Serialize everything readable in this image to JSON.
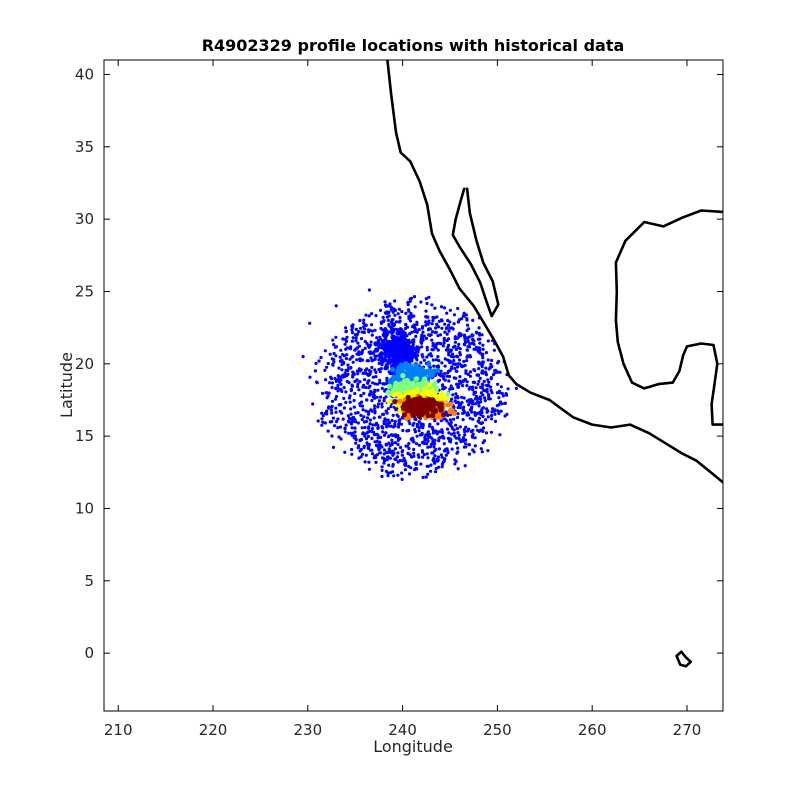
{
  "chart_data": {
    "type": "scatter",
    "title": "R4902329 profile locations with historical data",
    "xlabel": "Longitude",
    "ylabel": "Latitude",
    "xlim": [
      208.5,
      273.8
    ],
    "ylim": [
      -4,
      41
    ],
    "xticks": [
      210,
      220,
      230,
      240,
      250,
      260,
      270
    ],
    "yticks": [
      0,
      5,
      10,
      15,
      20,
      25,
      30,
      35,
      40
    ],
    "grid": false,
    "box": true,
    "colors": {
      "historical": "#0000ff",
      "coastline": "#000000",
      "profile_colormap": [
        "#00007f",
        "#0000ff",
        "#007fff",
        "#00ffff",
        "#7fff7f",
        "#ffff00",
        "#ff7f00",
        "#ff0000",
        "#7f0000"
      ]
    },
    "historical_cloud": {
      "center": [
        241.0,
        18.3
      ],
      "rx": 11.0,
      "ry": 6.6,
      "sample_points": [
        [
          229.5,
          20.5
        ],
        [
          230.2,
          22.8
        ],
        [
          231.0,
          18.7
        ],
        [
          232.5,
          17.0
        ],
        [
          233.0,
          24.0
        ],
        [
          234.0,
          21.0
        ],
        [
          235.5,
          19.5
        ],
        [
          236.0,
          15.0
        ],
        [
          236.5,
          25.1
        ],
        [
          237.0,
          13.5
        ],
        [
          238.0,
          16.5
        ],
        [
          238.5,
          23.0
        ],
        [
          239.5,
          12.3
        ],
        [
          240.0,
          14.0
        ],
        [
          241.0,
          21.5
        ],
        [
          242.5,
          24.5
        ],
        [
          243.0,
          13.0
        ],
        [
          244.0,
          22.0
        ],
        [
          245.5,
          15.0
        ],
        [
          246.0,
          20.0
        ],
        [
          247.0,
          17.5
        ],
        [
          248.0,
          19.2
        ],
        [
          249.0,
          14.0
        ],
        [
          250.0,
          18.0
        ],
        [
          251.0,
          16.5
        ],
        [
          252.0,
          18.3
        ],
        [
          233.5,
          14.8
        ],
        [
          231.5,
          16.2
        ],
        [
          246.5,
          23.5
        ],
        [
          248.5,
          21.0
        ]
      ]
    },
    "profile_series": [
      {
        "center": [
          239.5,
          21.0
        ],
        "spread": [
          1.6,
          1.2
        ],
        "value": 0.1
      },
      {
        "center": [
          241.0,
          19.0
        ],
        "spread": [
          2.0,
          0.9
        ],
        "value": 0.3
      },
      {
        "center": [
          241.2,
          18.1
        ],
        "spread": [
          2.3,
          0.7
        ],
        "value": 0.45
      },
      {
        "center": [
          242.0,
          17.5
        ],
        "spread": [
          2.5,
          0.7
        ],
        "value": 0.65
      },
      {
        "center": [
          242.5,
          16.9
        ],
        "spread": [
          2.3,
          0.6
        ],
        "value": 0.8
      },
      {
        "center": [
          242.0,
          17.0
        ],
        "spread": [
          1.7,
          0.5
        ],
        "value": 0.97
      }
    ],
    "coastlines": [
      {
        "name": "north-america-mainland",
        "points": [
          [
            238.4,
            41.0
          ],
          [
            238.8,
            38.6
          ],
          [
            239.3,
            36.0
          ],
          [
            239.8,
            34.6
          ],
          [
            240.8,
            34.0
          ],
          [
            241.8,
            32.6
          ],
          [
            242.6,
            31.0
          ],
          [
            243.1,
            29.0
          ],
          [
            243.9,
            27.8
          ],
          [
            245.0,
            26.5
          ],
          [
            246.0,
            25.2
          ],
          [
            247.5,
            24.0
          ],
          [
            248.5,
            22.9
          ],
          [
            249.6,
            21.7
          ],
          [
            250.6,
            20.5
          ],
          [
            251.2,
            19.2
          ],
          [
            252.0,
            18.6
          ],
          [
            253.5,
            18.0
          ],
          [
            255.5,
            17.5
          ],
          [
            258.0,
            16.3
          ],
          [
            260.0,
            15.8
          ],
          [
            262.0,
            15.6
          ],
          [
            264.0,
            15.8
          ],
          [
            266.0,
            15.2
          ],
          [
            268.0,
            14.4
          ],
          [
            269.5,
            13.8
          ],
          [
            271.0,
            13.3
          ],
          [
            272.5,
            12.5
          ],
          [
            273.8,
            11.8
          ]
        ]
      },
      {
        "name": "baja-california",
        "points": [
          [
            246.8,
            32.1
          ],
          [
            247.1,
            30.4
          ],
          [
            247.8,
            28.5
          ],
          [
            248.5,
            27.0
          ],
          [
            249.5,
            25.7
          ],
          [
            250.1,
            24.1
          ],
          [
            249.4,
            23.3
          ],
          [
            248.9,
            24.2
          ],
          [
            248.2,
            25.6
          ],
          [
            247.2,
            26.9
          ],
          [
            246.1,
            28.0
          ],
          [
            245.3,
            28.9
          ],
          [
            245.6,
            30.0
          ],
          [
            246.1,
            31.2
          ],
          [
            246.5,
            32.1
          ]
        ]
      },
      {
        "name": "gulf-of-mexico-coast",
        "points": [
          [
            273.8,
            30.5
          ],
          [
            271.5,
            30.6
          ],
          [
            269.5,
            30.1
          ],
          [
            267.5,
            29.5
          ],
          [
            265.5,
            29.8
          ],
          [
            263.5,
            28.5
          ],
          [
            262.5,
            27.0
          ],
          [
            262.6,
            25.0
          ],
          [
            262.5,
            23.0
          ],
          [
            262.7,
            21.5
          ],
          [
            263.3,
            20.0
          ],
          [
            264.2,
            18.7
          ],
          [
            265.5,
            18.3
          ],
          [
            267.0,
            18.6
          ],
          [
            268.5,
            18.7
          ],
          [
            269.2,
            19.5
          ],
          [
            269.6,
            20.6
          ],
          [
            270.0,
            21.2
          ],
          [
            271.5,
            21.4
          ],
          [
            272.8,
            21.3
          ],
          [
            273.2,
            20.0
          ],
          [
            272.9,
            18.6
          ],
          [
            272.6,
            17.2
          ],
          [
            272.7,
            15.8
          ],
          [
            273.8,
            15.8
          ]
        ]
      },
      {
        "name": "galapagos-islands",
        "points": [
          [
            268.9,
            -0.2
          ],
          [
            269.3,
            -0.8
          ],
          [
            269.9,
            -0.9
          ],
          [
            270.4,
            -0.6
          ],
          [
            269.9,
            -0.3
          ],
          [
            269.4,
            0.1
          ],
          [
            268.9,
            -0.2
          ]
        ]
      }
    ]
  }
}
